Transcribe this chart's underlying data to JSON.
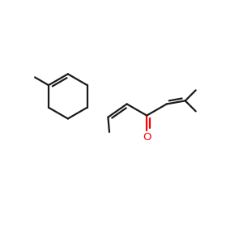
{
  "bg_color": "#ffffff",
  "line_color": "#1a1a1a",
  "o_color": "#ff0000",
  "line_width": 1.6,
  "figsize": [
    3.0,
    3.0
  ],
  "dpi": 100,
  "xlim": [
    -0.5,
    10.5
  ],
  "ylim": [
    -0.5,
    10.5
  ]
}
